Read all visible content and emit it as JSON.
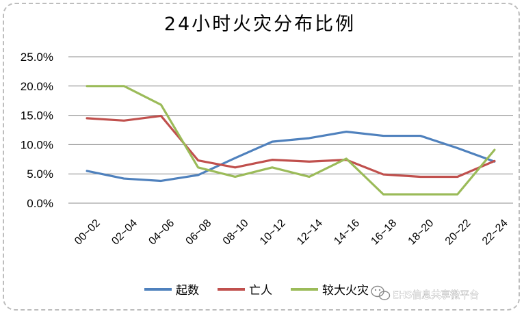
{
  "chart_data": {
    "type": "line",
    "title": "24小时火灾分布比例",
    "categories": [
      "00~02",
      "02~04",
      "04~06",
      "06~08",
      "08~10",
      "10~12",
      "12~14",
      "14~16",
      "16~18",
      "18~20",
      "20~22",
      "22~24"
    ],
    "ylim": [
      0,
      25
    ],
    "y_ticks": [
      "0.0%",
      "5.0%",
      "10.0%",
      "15.0%",
      "20.0%",
      "25.0%"
    ],
    "y_tick_values": [
      0,
      5,
      10,
      15,
      20,
      25
    ],
    "grid": true,
    "legend_position": "bottom",
    "series": [
      {
        "name": "起数",
        "color": "#4f81bd",
        "values": [
          5.5,
          4.2,
          3.8,
          4.8,
          7.7,
          10.5,
          11.1,
          12.2,
          11.5,
          11.5,
          9.4,
          7.1
        ]
      },
      {
        "name": "亡人",
        "color": "#c0504d",
        "values": [
          14.5,
          14.1,
          14.9,
          7.3,
          6.1,
          7.4,
          7.1,
          7.4,
          4.9,
          4.5,
          4.5,
          7.2
        ]
      },
      {
        "name": "较大火灾",
        "color": "#9bbb59",
        "values": [
          20.0,
          20.0,
          16.8,
          6.1,
          4.5,
          6.1,
          4.5,
          7.6,
          1.5,
          1.5,
          1.5,
          9.1
        ]
      }
    ]
  },
  "watermark": {
    "icon": "wechat-icon",
    "text": "EHS信息共享微平台"
  }
}
